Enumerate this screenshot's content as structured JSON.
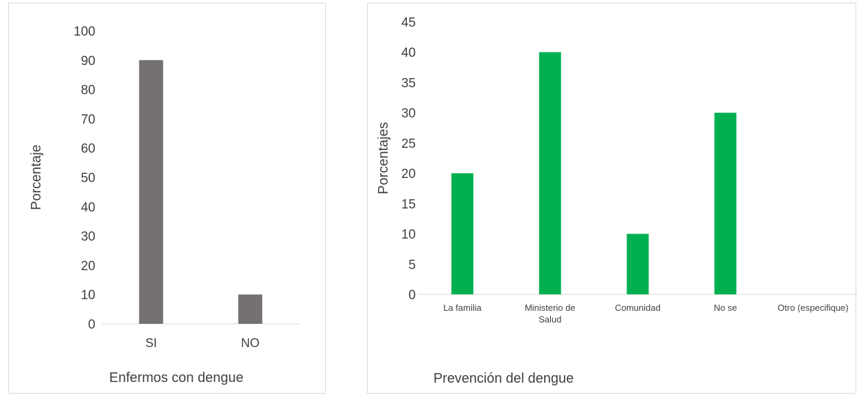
{
  "chart_data": [
    {
      "type": "bar",
      "categories": [
        "SI",
        "NO"
      ],
      "values": [
        90,
        10
      ],
      "xlabel": "Enfermos con dengue",
      "ylabel": "Porcentaje",
      "ylim": [
        0,
        100
      ],
      "yticks": [
        "0",
        "10",
        "20",
        "30",
        "40",
        "50",
        "60",
        "70",
        "80",
        "90",
        "100"
      ],
      "bar_color": "#767171",
      "grid": false
    },
    {
      "type": "bar",
      "categories": [
        "La familia",
        "Ministerio de Salud",
        "Comunidad",
        "No se",
        "Otro (especifique)"
      ],
      "category_lines": [
        [
          "La familia"
        ],
        [
          "Ministerio de",
          "Salud"
        ],
        [
          "Comunidad"
        ],
        [
          "No se"
        ],
        [
          "Otro (especifique)"
        ]
      ],
      "values": [
        20,
        40,
        10,
        30,
        0
      ],
      "xlabel": "Prevención del dengue",
      "ylabel": "Porcentajes",
      "ylim": [
        0,
        45
      ],
      "yticks": [
        "0",
        "5",
        "10",
        "15",
        "20",
        "25",
        "30",
        "35",
        "40",
        "45"
      ],
      "bar_color": "#00b050",
      "grid": false
    }
  ]
}
